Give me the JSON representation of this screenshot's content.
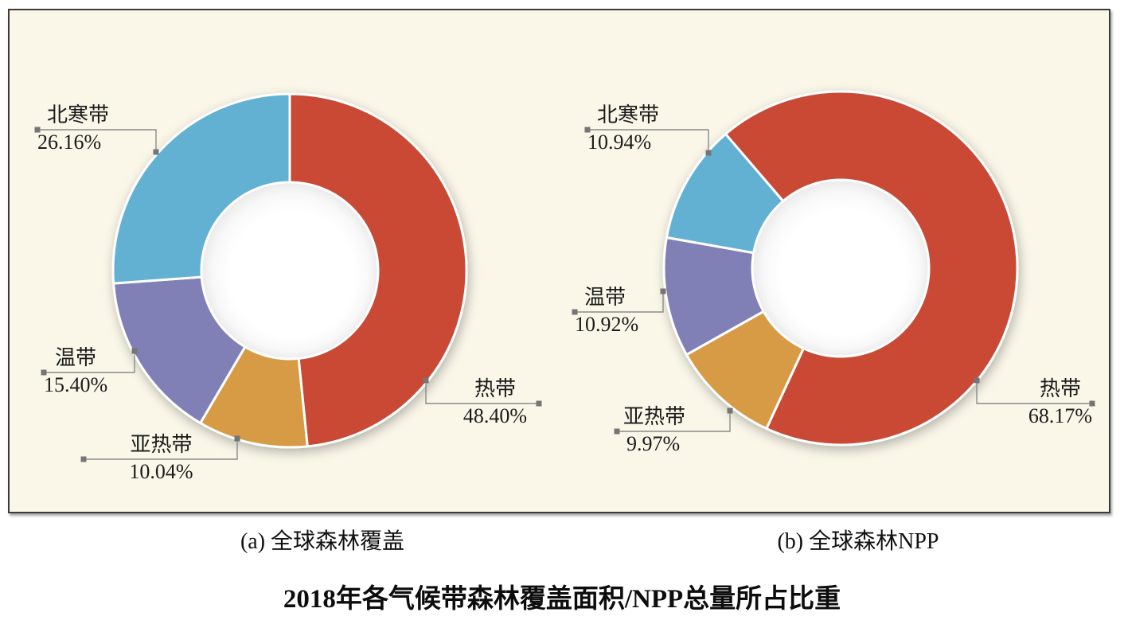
{
  "figure_title": "2018年各气候带森林覆盖面积/NPP总量所占比重",
  "chart_data": [
    {
      "type": "pie",
      "subtype": "donut",
      "caption": "(a) 全球森林覆盖",
      "unit": "%",
      "start_angle_deg": 0,
      "clockwise": true,
      "legend": "none",
      "slices": [
        {
          "name": "热带",
          "value": 48.4,
          "label": "48.40%",
          "color": "#c94a35"
        },
        {
          "name": "亚热带",
          "value": 10.04,
          "label": "10.04%",
          "color": "#d89b44"
        },
        {
          "name": "温带",
          "value": 15.4,
          "label": "15.40%",
          "color": "#8180b6"
        },
        {
          "name": "北寒带",
          "value": 26.16,
          "label": "26.16%",
          "color": "#62b1d3"
        }
      ]
    },
    {
      "type": "pie",
      "subtype": "donut",
      "caption": "(b) 全球森林NPP",
      "unit": "%",
      "start_angle_deg": -40.6,
      "clockwise": true,
      "legend": "none",
      "slices": [
        {
          "name": "热带",
          "value": 68.17,
          "label": "68.17%",
          "color": "#c94a35"
        },
        {
          "name": "亚热带",
          "value": 9.97,
          "label": "9.97%",
          "color": "#d89b44"
        },
        {
          "name": "温带",
          "value": 10.92,
          "label": "10.92%",
          "color": "#8180b6"
        },
        {
          "name": "北寒带",
          "value": 10.94,
          "label": "10.94%",
          "color": "#62b1d3"
        }
      ]
    }
  ],
  "style_colors": {
    "panel_background": "#faf7e9",
    "panel_border": "#3a3a3a",
    "leader_line": "#8a8a8a",
    "leader_square": "#757575",
    "slice_gap": "#ffffff",
    "text": "#1b1b1b"
  }
}
